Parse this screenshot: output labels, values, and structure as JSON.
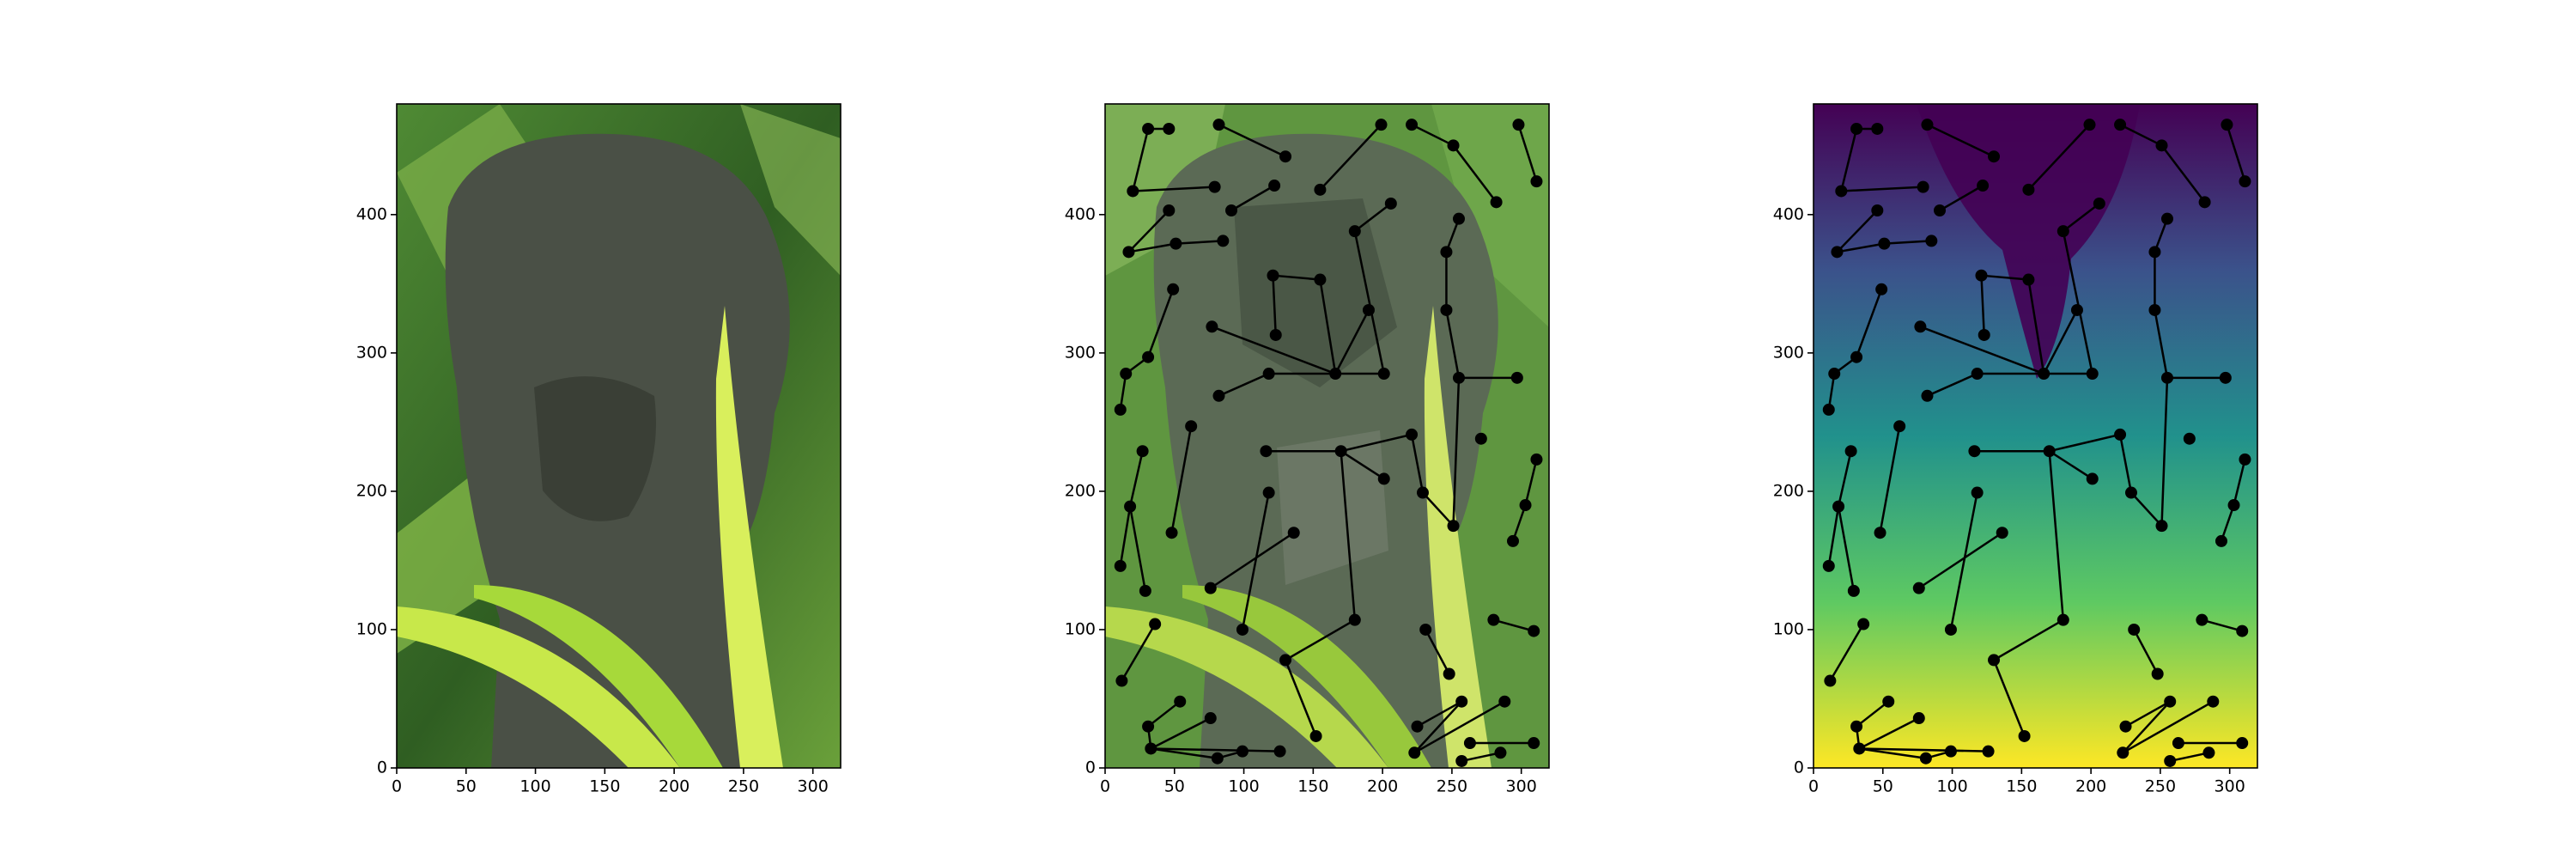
{
  "chart_data": [
    {
      "type": "image",
      "xlim": [
        0,
        320
      ],
      "ylim": [
        480,
        0
      ],
      "xticks": [
        0,
        50,
        100,
        150,
        200,
        250,
        300
      ],
      "yticks": [
        0,
        100,
        200,
        300,
        400
      ]
    },
    {
      "type": "graph",
      "background": "segments",
      "node_color": "#000000",
      "edge_color": "#000000",
      "xlim": [
        0,
        320
      ],
      "ylim": [
        480,
        0
      ],
      "xticks": [
        0,
        50,
        100,
        150,
        200,
        250,
        300
      ],
      "yticks": [
        0,
        100,
        200,
        300,
        400
      ],
      "x": [
        33,
        31,
        54,
        81,
        99,
        126,
        76,
        12,
        36,
        130,
        152,
        180,
        223,
        257,
        285,
        309,
        263,
        225,
        257,
        288,
        248,
        231,
        280,
        309,
        11,
        29,
        18,
        27,
        48,
        62,
        99,
        118,
        76,
        136,
        116,
        170,
        201,
        229,
        221,
        251,
        294,
        303,
        311,
        271,
        166,
        201,
        118,
        82,
        15,
        11,
        31,
        77,
        123,
        49,
        121,
        155,
        190,
        255,
        297,
        246,
        246,
        255,
        180,
        206,
        85,
        51,
        17,
        46,
        91,
        122,
        20,
        79,
        31,
        46,
        82,
        130,
        155,
        199,
        221,
        251,
        311,
        298,
        282
      ],
      "y": [
        14,
        30,
        48,
        7,
        12,
        12,
        36,
        63,
        104,
        78,
        23,
        107,
        11,
        5,
        11,
        18,
        18,
        30,
        48,
        48,
        68,
        100,
        107,
        99,
        146,
        128,
        189,
        229,
        170,
        247,
        100,
        199,
        130,
        170,
        229,
        229,
        209,
        199,
        241,
        175,
        164,
        190,
        223,
        238,
        285,
        285,
        285,
        269,
        285,
        259,
        297,
        319,
        313,
        346,
        356,
        353,
        331,
        282,
        282,
        331,
        373,
        397,
        388,
        408,
        381,
        379,
        373,
        403,
        403,
        421,
        417,
        420,
        462,
        462,
        465,
        442,
        418,
        465,
        465,
        450,
        424,
        465,
        409
      ],
      "edges": [
        [
          0,
          3
        ],
        [
          0,
          1
        ],
        [
          0,
          6
        ],
        [
          1,
          2
        ],
        [
          3,
          4
        ],
        [
          0,
          5
        ],
        [
          7,
          8
        ],
        [
          9,
          10
        ],
        [
          9,
          11
        ],
        [
          11,
          35
        ],
        [
          12,
          18
        ],
        [
          12,
          19
        ],
        [
          17,
          18
        ],
        [
          13,
          14
        ],
        [
          16,
          15
        ],
        [
          20,
          21
        ],
        [
          22,
          23
        ],
        [
          24,
          26
        ],
        [
          25,
          26
        ],
        [
          26,
          27
        ],
        [
          28,
          29
        ],
        [
          30,
          31
        ],
        [
          32,
          33
        ],
        [
          34,
          35
        ],
        [
          35,
          36
        ],
        [
          37,
          38
        ],
        [
          35,
          38
        ],
        [
          40,
          41
        ],
        [
          41,
          42
        ],
        [
          44,
          45
        ],
        [
          44,
          46
        ],
        [
          44,
          56
        ],
        [
          44,
          51
        ],
        [
          44,
          55
        ],
        [
          46,
          47
        ],
        [
          48,
          49
        ],
        [
          48,
          50
        ],
        [
          50,
          53
        ],
        [
          52,
          54
        ],
        [
          54,
          55
        ],
        [
          57,
          58
        ],
        [
          57,
          59
        ],
        [
          59,
          60
        ],
        [
          60,
          61
        ],
        [
          62,
          63
        ],
        [
          64,
          65
        ],
        [
          65,
          66
        ],
        [
          66,
          67
        ],
        [
          68,
          69
        ],
        [
          70,
          71
        ],
        [
          70,
          72
        ],
        [
          72,
          73
        ],
        [
          74,
          75
        ],
        [
          76,
          77
        ],
        [
          78,
          79
        ],
        [
          80,
          81
        ],
        [
          82,
          79
        ],
        [
          39,
          57
        ],
        [
          45,
          62
        ],
        [
          37,
          39
        ]
      ]
    },
    {
      "type": "graph",
      "background": "viridis",
      "node_color": "#000000",
      "edge_color": "#000000",
      "xlim": [
        0,
        320
      ],
      "ylim": [
        480,
        0
      ],
      "xticks": [
        0,
        50,
        100,
        150,
        200,
        250,
        300
      ],
      "yticks": [
        0,
        100,
        200,
        300,
        400
      ],
      "x": [
        33,
        31,
        54,
        81,
        99,
        126,
        76,
        12,
        36,
        130,
        152,
        180,
        223,
        257,
        285,
        309,
        263,
        225,
        257,
        288,
        248,
        231,
        280,
        309,
        11,
        29,
        18,
        27,
        48,
        62,
        99,
        118,
        76,
        136,
        116,
        170,
        201,
        229,
        221,
        251,
        294,
        303,
        311,
        271,
        166,
        201,
        118,
        82,
        15,
        11,
        31,
        77,
        123,
        49,
        121,
        155,
        190,
        255,
        297,
        246,
        246,
        255,
        180,
        206,
        85,
        51,
        17,
        46,
        91,
        122,
        20,
        79,
        31,
        46,
        82,
        130,
        155,
        199,
        221,
        251,
        311,
        298,
        282
      ],
      "y": [
        14,
        30,
        48,
        7,
        12,
        12,
        36,
        63,
        104,
        78,
        23,
        107,
        11,
        5,
        11,
        18,
        18,
        30,
        48,
        48,
        68,
        100,
        107,
        99,
        146,
        128,
        189,
        229,
        170,
        247,
        100,
        199,
        130,
        170,
        229,
        229,
        209,
        199,
        241,
        175,
        164,
        190,
        223,
        238,
        285,
        285,
        285,
        269,
        285,
        259,
        297,
        319,
        313,
        346,
        356,
        353,
        331,
        282,
        282,
        331,
        373,
        397,
        388,
        408,
        381,
        379,
        373,
        403,
        403,
        421,
        417,
        420,
        462,
        462,
        465,
        442,
        418,
        465,
        465,
        450,
        424,
        465,
        409
      ],
      "edges": [
        [
          0,
          3
        ],
        [
          0,
          1
        ],
        [
          0,
          6
        ],
        [
          1,
          2
        ],
        [
          3,
          4
        ],
        [
          0,
          5
        ],
        [
          7,
          8
        ],
        [
          9,
          10
        ],
        [
          9,
          11
        ],
        [
          11,
          35
        ],
        [
          12,
          18
        ],
        [
          12,
          19
        ],
        [
          17,
          18
        ],
        [
          13,
          14
        ],
        [
          16,
          15
        ],
        [
          20,
          21
        ],
        [
          22,
          23
        ],
        [
          24,
          26
        ],
        [
          25,
          26
        ],
        [
          26,
          27
        ],
        [
          28,
          29
        ],
        [
          30,
          31
        ],
        [
          32,
          33
        ],
        [
          34,
          35
        ],
        [
          35,
          36
        ],
        [
          37,
          38
        ],
        [
          35,
          38
        ],
        [
          40,
          41
        ],
        [
          41,
          42
        ],
        [
          44,
          45
        ],
        [
          44,
          46
        ],
        [
          44,
          56
        ],
        [
          44,
          51
        ],
        [
          44,
          55
        ],
        [
          46,
          47
        ],
        [
          48,
          49
        ],
        [
          48,
          50
        ],
        [
          50,
          53
        ],
        [
          52,
          54
        ],
        [
          54,
          55
        ],
        [
          57,
          58
        ],
        [
          57,
          59
        ],
        [
          59,
          60
        ],
        [
          60,
          61
        ],
        [
          62,
          63
        ],
        [
          64,
          65
        ],
        [
          65,
          66
        ],
        [
          66,
          67
        ],
        [
          68,
          69
        ],
        [
          70,
          71
        ],
        [
          70,
          72
        ],
        [
          72,
          73
        ],
        [
          74,
          75
        ],
        [
          76,
          77
        ],
        [
          78,
          79
        ],
        [
          80,
          81
        ],
        [
          82,
          79
        ],
        [
          39,
          57
        ],
        [
          45,
          62
        ],
        [
          37,
          39
        ]
      ]
    }
  ]
}
